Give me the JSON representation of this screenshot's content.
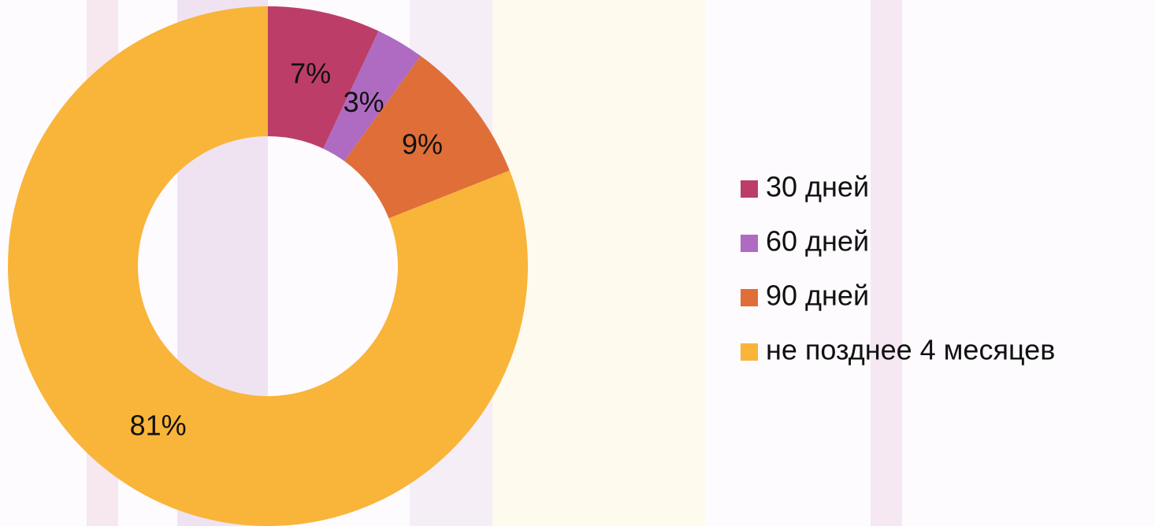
{
  "chart_data": {
    "type": "donut",
    "categories": [
      "30 дней",
      "60 дней",
      "90 дней",
      "не позднее 4 месяцев"
    ],
    "values": [
      7,
      3,
      9,
      81
    ],
    "value_labels": [
      "7%",
      "3%",
      "9%",
      "81%"
    ],
    "colors": [
      "#bc3e68",
      "#ae6bc1",
      "#e06e38",
      "#f9b43a"
    ],
    "legend": "right"
  }
}
